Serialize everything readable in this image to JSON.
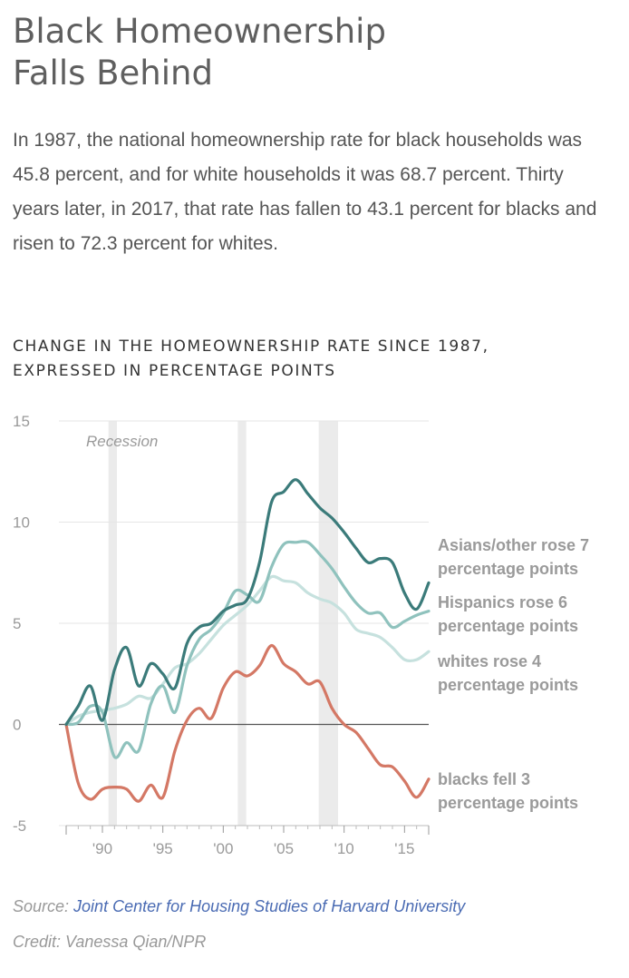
{
  "header": {
    "title_line1": "Black Homeownership",
    "title_line2": "Falls Behind",
    "intro": "In 1987, the national homeownership rate for black households was 45.8 percent, and for white households it was 68.7 percent. Thirty years later, in 2017, that rate has fallen to 43.1 percent for blacks and risen to 72.3 percent for whites."
  },
  "chart_title": {
    "line1": "CHANGE IN THE HOMEOWNERSHIP RATE SINCE 1987,",
    "line2": "EXPRESSED IN PERCENTAGE POINTS"
  },
  "footer": {
    "source_prefix": "Source: ",
    "source_link": "Joint Center for Housing Studies of Harvard University",
    "credit": "Credit: Vanessa Qian/NPR"
  },
  "chart_data": {
    "type": "line",
    "title": "CHANGE IN THE HOMEOWNERSHIP RATE SINCE 1987, EXPRESSED IN PERCENTAGE POINTS",
    "xlim": [
      1987,
      2017
    ],
    "ylim": [
      -5,
      15
    ],
    "y_ticks": [
      15,
      10,
      5,
      0,
      -5
    ],
    "y_tick_labels": [
      "15",
      "10",
      "5",
      "0",
      "-5"
    ],
    "x_ticks": [
      1990,
      1995,
      2000,
      2005,
      2010,
      2015
    ],
    "x_tick_labels": [
      "'90",
      "'95",
      "'00",
      "'05",
      "'10",
      "'15"
    ],
    "grid": true,
    "recession_label": "Recession",
    "recessions": [
      [
        1990.5,
        1991.2
      ],
      [
        2001.2,
        2001.9
      ],
      [
        2007.9,
        2009.5
      ]
    ],
    "series": [
      {
        "name": "Asians/other",
        "label_lines": [
          "Asians/other rose 7",
          "percentage points"
        ],
        "color": "#3b7b7a",
        "x": [
          1987,
          1988,
          1989,
          1990,
          1991,
          1992,
          1993,
          1994,
          1995,
          1996,
          1997,
          1998,
          1999,
          2000,
          2001,
          2002,
          2003,
          2004,
          2005,
          2006,
          2007,
          2008,
          2009,
          2010,
          2011,
          2012,
          2013,
          2014,
          2015,
          2016,
          2017
        ],
        "values": [
          0,
          0.9,
          1.9,
          0.2,
          2.7,
          3.8,
          1.9,
          3.0,
          2.5,
          1.8,
          4.0,
          4.8,
          5.0,
          5.6,
          5.9,
          6.2,
          8.0,
          11.0,
          11.5,
          12.1,
          11.4,
          10.7,
          10.2,
          9.5,
          8.7,
          8.0,
          8.2,
          8.0,
          6.5,
          5.7,
          7.0
        ]
      },
      {
        "name": "Hispanics",
        "label_lines": [
          "Hispanics rose 6",
          "percentage points"
        ],
        "color": "#8fc2bd",
        "x": [
          1987,
          1988,
          1989,
          1990,
          1991,
          1992,
          1993,
          1994,
          1995,
          1996,
          1997,
          1998,
          1999,
          2000,
          2001,
          2002,
          2003,
          2004,
          2005,
          2006,
          2007,
          2008,
          2009,
          2010,
          2011,
          2012,
          2013,
          2014,
          2015,
          2016,
          2017
        ],
        "values": [
          0,
          0.1,
          0.9,
          0.6,
          -1.6,
          -0.9,
          -1.3,
          1.0,
          1.9,
          0.6,
          2.9,
          4.2,
          4.7,
          5.5,
          6.6,
          6.4,
          6.1,
          7.8,
          8.9,
          9.0,
          9.0,
          8.4,
          7.7,
          6.8,
          6.0,
          5.5,
          5.5,
          4.8,
          5.1,
          5.4,
          5.6
        ]
      },
      {
        "name": "whites",
        "label_lines": [
          "whites rose 4",
          "percentage points"
        ],
        "color": "#c6e1de",
        "x": [
          1987,
          1988,
          1989,
          1990,
          1991,
          1992,
          1993,
          1994,
          1995,
          1996,
          1997,
          1998,
          1999,
          2000,
          2001,
          2002,
          2003,
          2004,
          2005,
          2006,
          2007,
          2008,
          2009,
          2010,
          2011,
          2012,
          2013,
          2014,
          2015,
          2016,
          2017
        ],
        "values": [
          0,
          0.4,
          0.6,
          0.7,
          0.8,
          1.0,
          1.4,
          1.3,
          2.0,
          2.8,
          3.0,
          3.5,
          4.2,
          4.9,
          5.4,
          5.9,
          6.6,
          7.3,
          7.1,
          7.0,
          6.5,
          6.2,
          6.0,
          5.5,
          4.7,
          4.5,
          4.3,
          3.8,
          3.2,
          3.2,
          3.6
        ]
      },
      {
        "name": "blacks",
        "label_lines": [
          "blacks fell 3",
          "percentage points"
        ],
        "color": "#d47865",
        "x": [
          1987,
          1988,
          1989,
          1990,
          1991,
          1992,
          1993,
          1994,
          1995,
          1996,
          1997,
          1998,
          1999,
          2000,
          2001,
          2002,
          2003,
          2004,
          2005,
          2006,
          2007,
          2008,
          2009,
          2010,
          2011,
          2012,
          2013,
          2014,
          2015,
          2016,
          2017
        ],
        "values": [
          0,
          -2.9,
          -3.7,
          -3.2,
          -3.1,
          -3.2,
          -3.8,
          -3.0,
          -3.6,
          -1.3,
          0.2,
          0.8,
          0.3,
          1.8,
          2.6,
          2.4,
          2.9,
          3.9,
          3.0,
          2.6,
          2.0,
          2.1,
          0.8,
          0.0,
          -0.4,
          -1.2,
          -2.0,
          -2.1,
          -2.8,
          -3.6,
          -2.7
        ]
      }
    ]
  }
}
